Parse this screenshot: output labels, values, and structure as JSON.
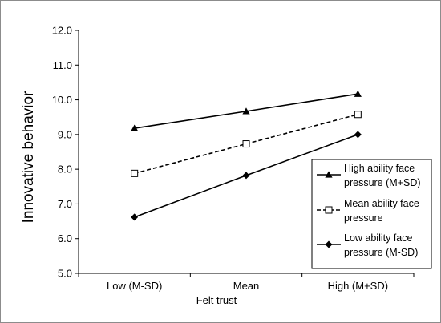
{
  "chart_data": {
    "type": "line",
    "title": "",
    "xlabel": "Felt trust",
    "ylabel": "Innovative behavior",
    "categories": [
      "Low (M-SD)",
      "Mean",
      "High (M+SD)"
    ],
    "ylim": [
      5.0,
      12.0
    ],
    "yticks": [
      "5.0",
      "6.0",
      "7.0",
      "8.0",
      "9.0",
      "10.0",
      "11.0",
      "12.0"
    ],
    "ytick_values": [
      5,
      6,
      7,
      8,
      9,
      10,
      11,
      12
    ],
    "grid": false,
    "legend_position": "right",
    "series": [
      {
        "name_lines": [
          "High ability face",
          "pressure (M+SD)"
        ],
        "values": [
          9.18,
          9.67,
          10.17
        ],
        "marker": "triangle",
        "line_style": "solid",
        "color": "#000000"
      },
      {
        "name_lines": [
          "Mean ability face",
          "pressure"
        ],
        "values": [
          7.88,
          8.73,
          9.58
        ],
        "marker": "square-open",
        "line_style": "dashed",
        "color": "#000000"
      },
      {
        "name_lines": [
          "Low ability face",
          "pressure (M-SD)"
        ],
        "values": [
          6.62,
          7.82,
          9.0
        ],
        "marker": "diamond",
        "line_style": "solid",
        "color": "#000000"
      }
    ]
  }
}
